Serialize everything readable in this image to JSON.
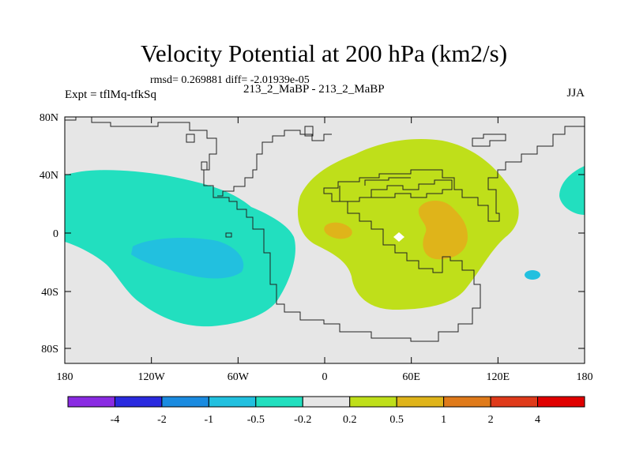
{
  "title": "Velocity Potential at 200 hPa (km2/s)",
  "stats": {
    "rmsd_label": "rmsd=",
    "rmsd": "0.269881",
    "diff_label": "diff=",
    "diff": "-2.01939e-05",
    "text": "rmsd= 0.269881 diff= -2.01939e-05"
  },
  "experiment": "Expt = tflMq-tfkSq",
  "subtitle": "213_2_MaBP - 213_2_MaBP",
  "season": "JJA",
  "axes": {
    "lat_ticks": [
      "80N",
      "40N",
      "0",
      "40S",
      "80S"
    ],
    "lon_ticks": [
      "180",
      "120W",
      "60W",
      "0",
      "60E",
      "120E",
      "180"
    ]
  },
  "colorbar": {
    "colors": [
      "#8a2be2",
      "#2a2adf",
      "#1a8be0",
      "#22c0df",
      "#22dfbf",
      "#e6e6e6",
      "#bfdf1a",
      "#dfb41a",
      "#df7a1a",
      "#df3a1a",
      "#e00000"
    ],
    "labels": [
      "-4",
      "-2",
      "-1",
      "-0.5",
      "-0.2",
      "0.2",
      "0.5",
      "1",
      "2",
      "4"
    ]
  },
  "colors": {
    "background": "#e6e6e6",
    "neg_light": "#22dfbf",
    "neg_mid": "#22c0df",
    "pos_light": "#bfdf1a",
    "pos_mid": "#dfb41a"
  }
}
